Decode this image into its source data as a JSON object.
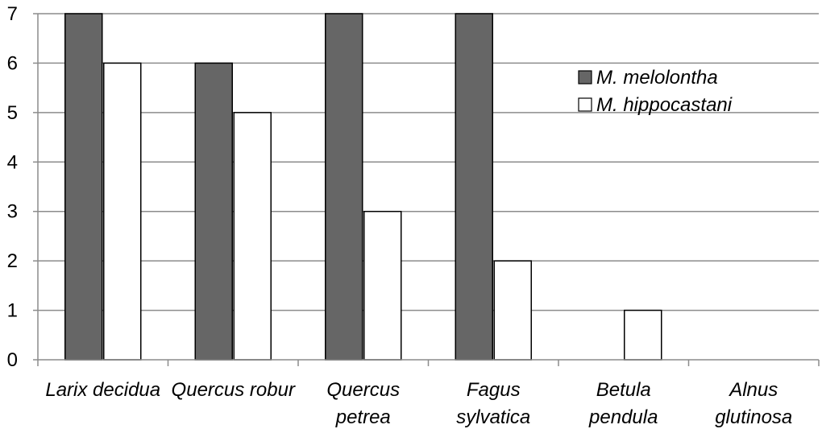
{
  "chart_data": {
    "type": "bar",
    "categories": [
      [
        "Larix decidua"
      ],
      [
        "Quercus robur"
      ],
      [
        "Quercus",
        "petrea"
      ],
      [
        "Fagus",
        "sylvatica"
      ],
      [
        "Betula",
        "pendula"
      ],
      [
        "Alnus",
        "glutinosa"
      ]
    ],
    "series": [
      {
        "name": "M. melolontha",
        "color": "#666666",
        "values": [
          7,
          6,
          7,
          7,
          0,
          0
        ]
      },
      {
        "name": "M. hippocastani",
        "color": "#ffffff",
        "values": [
          6,
          5,
          3,
          2,
          1,
          0
        ]
      }
    ],
    "ylim": [
      0,
      7
    ],
    "yticks": [
      0,
      1,
      2,
      3,
      4,
      5,
      6,
      7
    ],
    "grid": true,
    "legend_position": "top-right"
  }
}
